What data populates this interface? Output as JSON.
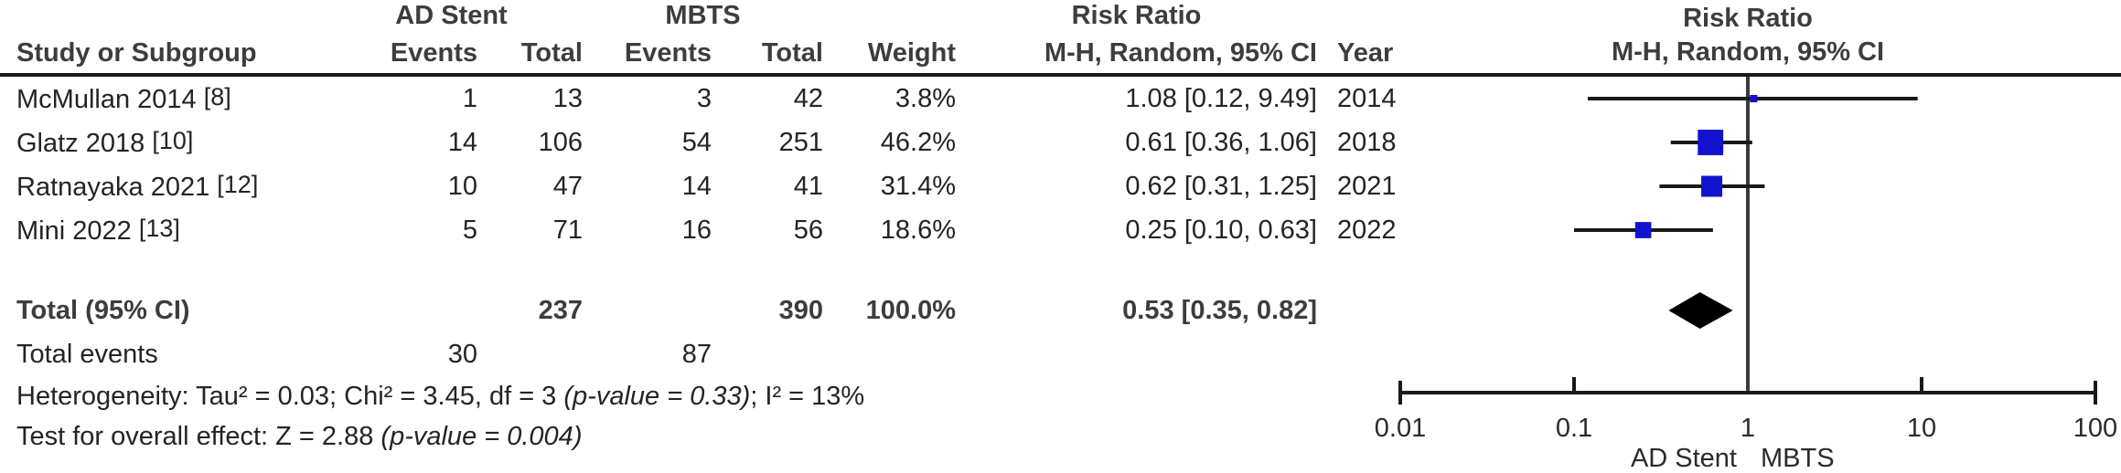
{
  "table": {
    "group_headers": {
      "experimental": "AD Stent",
      "control": "MBTS",
      "effect": "Risk Ratio"
    },
    "columns": {
      "study": "Study or Subgroup",
      "events": "Events",
      "total": "Total",
      "weight": "Weight",
      "ci": "M-H, Random, 95% CI",
      "year": "Year"
    },
    "total_events": {
      "label": "Total events",
      "experimental": "30",
      "control": "87"
    },
    "heterogeneity": {
      "prefix": "Heterogeneity: Tau² = 0.03; Chi² = 3.45, df = 3 ",
      "pvalue": "(p-value = 0.33)",
      "suffix": "; I² = 13%"
    },
    "overall_effect": {
      "prefix": "Test for overall effect: Z = 2.88 ",
      "pvalue": "(p-value = 0.004)"
    }
  },
  "plot": {
    "header_line1": "Risk Ratio",
    "header_line2": "M-H, Random, 95% CI",
    "favours_left": "AD Stent",
    "favours_right": "MBTS"
  },
  "colors": {
    "marker_blue": "#1212CE",
    "diamond_black": "#000000",
    "line_black": "#1a1a1a",
    "text_dark": "#242424",
    "text_header_gray": "#3d3d3d"
  },
  "chart_data": {
    "type": "forest",
    "effect_measure": "Risk Ratio, M-H, Random, 95% CI",
    "x_scale": "log10",
    "x_ticks": [
      0.01,
      0.1,
      1,
      10,
      100
    ],
    "x_tick_labels": [
      "0.01",
      "0.1",
      "1",
      "10",
      "100"
    ],
    "axis_left_label": "AD Stent",
    "axis_right_label": "MBTS",
    "studies": [
      {
        "name": "McMullan 2014",
        "ref": "[8]",
        "events_exp": 1,
        "total_exp": 13,
        "events_ctrl": 3,
        "total_ctrl": 42,
        "weight_pct": 3.8,
        "weight_text": "3.8%",
        "rr": 1.08,
        "ci_low": 0.12,
        "ci_high": 9.49,
        "ci_text": "1.08 [0.12, 9.49]",
        "year": 2014
      },
      {
        "name": "Glatz 2018",
        "ref": "[10]",
        "events_exp": 14,
        "total_exp": 106,
        "events_ctrl": 54,
        "total_ctrl": 251,
        "weight_pct": 46.2,
        "weight_text": "46.2%",
        "rr": 0.61,
        "ci_low": 0.36,
        "ci_high": 1.06,
        "ci_text": "0.61 [0.36, 1.06]",
        "year": 2018
      },
      {
        "name": "Ratnayaka 2021",
        "ref": "[12]",
        "events_exp": 10,
        "total_exp": 47,
        "events_ctrl": 14,
        "total_ctrl": 41,
        "weight_pct": 31.4,
        "weight_text": "31.4%",
        "rr": 0.62,
        "ci_low": 0.31,
        "ci_high": 1.25,
        "ci_text": "0.62 [0.31, 1.25]",
        "year": 2021
      },
      {
        "name": "Mini 2022",
        "ref": "[13]",
        "events_exp": 5,
        "total_exp": 71,
        "events_ctrl": 16,
        "total_ctrl": 56,
        "weight_pct": 18.6,
        "weight_text": "18.6%",
        "rr": 0.25,
        "ci_low": 0.1,
        "ci_high": 0.63,
        "ci_text": "0.25 [0.10, 0.63]",
        "year": 2022
      }
    ],
    "total": {
      "label": "Total (95% CI)",
      "total_exp": 237,
      "total_ctrl": 390,
      "weight_text": "100.0%",
      "rr": 0.53,
      "ci_low": 0.35,
      "ci_high": 0.82,
      "ci_text": "0.53 [0.35, 0.82]"
    },
    "total_events": {
      "experimental": 30,
      "control": 87
    },
    "heterogeneity": {
      "tau2": 0.03,
      "chi2": 3.45,
      "df": 3,
      "p_value": 0.33,
      "i2_pct": 13
    },
    "overall_effect": {
      "z": 2.88,
      "p_value": 0.004
    }
  }
}
